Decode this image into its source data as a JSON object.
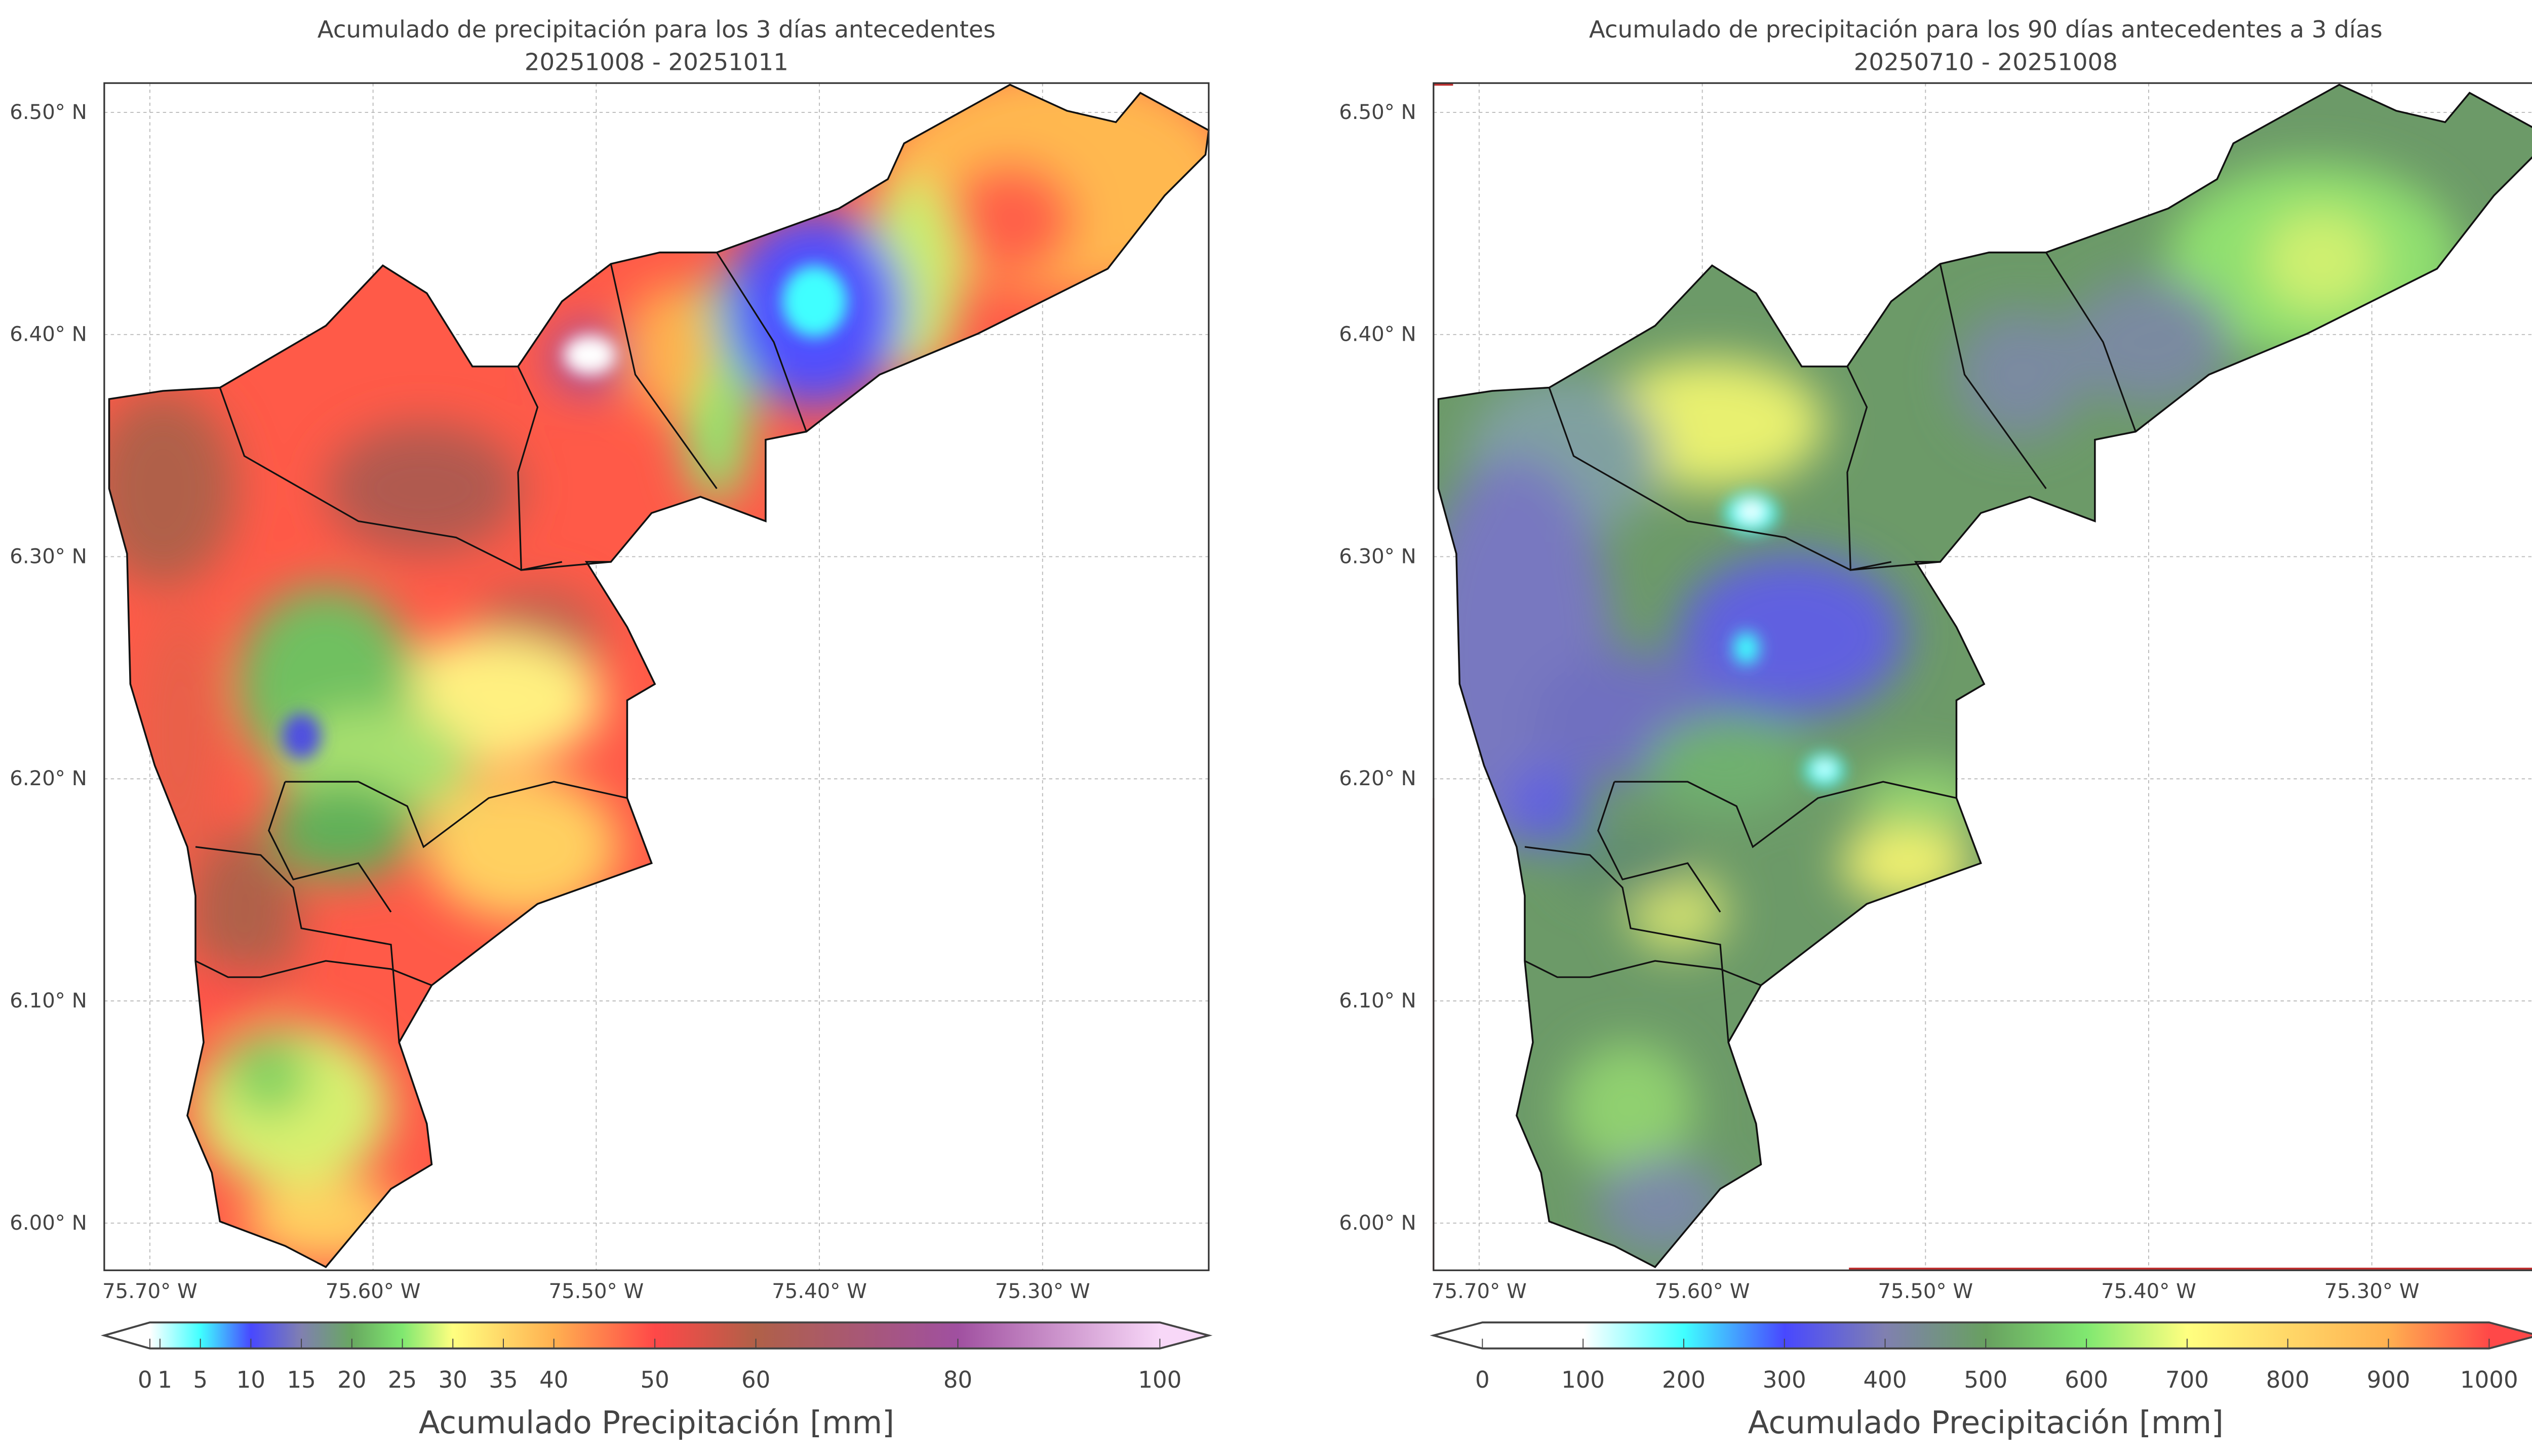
{
  "panels": [
    {
      "title": "Acumulado de precipitación para los 3 días antecedentes",
      "subtitle": "20251008 - 20251011",
      "colorbar": {
        "label": "Acumulado Precipitación [mm]",
        "min": 0,
        "max": 100,
        "ticks": [
          0,
          1,
          5,
          10,
          15,
          20,
          25,
          30,
          35,
          40,
          50,
          60,
          80,
          100
        ],
        "tick_labels": [
          "0",
          "1",
          "5",
          "10",
          "15",
          "20",
          "25",
          "30",
          "35",
          "40",
          "50",
          "60",
          "80",
          "100"
        ],
        "colors": [
          [
            0,
            "#ffffff"
          ],
          [
            5,
            "#40ffff"
          ],
          [
            10,
            "#4848ff"
          ],
          [
            15,
            "#8080b0"
          ],
          [
            20,
            "#68a860"
          ],
          [
            25,
            "#80e870"
          ],
          [
            30,
            "#ffff80"
          ],
          [
            40,
            "#ffb050"
          ],
          [
            50,
            "#ff4848"
          ],
          [
            60,
            "#b06048"
          ],
          [
            80,
            "#a050a0"
          ],
          [
            100,
            "#f8d8f8"
          ]
        ],
        "extend": "both"
      }
    },
    {
      "title": "Acumulado de precipitación para los 90 días antecedentes a 3 días",
      "subtitle": "20250710 - 20251008",
      "colorbar": {
        "label": "Acumulado Precipitación [mm]",
        "min": 0,
        "max": 1000,
        "ticks": [
          0,
          100,
          200,
          300,
          400,
          500,
          600,
          700,
          800,
          900,
          1000
        ],
        "tick_labels": [
          "0",
          "100",
          "200",
          "300",
          "400",
          "500",
          "600",
          "700",
          "800",
          "900",
          "1000"
        ],
        "colors": [
          [
            0,
            "#ffffff"
          ],
          [
            100,
            "#ffffff"
          ],
          [
            200,
            "#40ffff"
          ],
          [
            300,
            "#4848ff"
          ],
          [
            400,
            "#8080b0"
          ],
          [
            500,
            "#68a060"
          ],
          [
            600,
            "#80e870"
          ],
          [
            700,
            "#ffff80"
          ],
          [
            900,
            "#ffb050"
          ],
          [
            1000,
            "#ff4848"
          ]
        ],
        "extend": "both"
      }
    }
  ],
  "axes": {
    "lat_labels": [
      "6.50° N",
      "6.40° N",
      "6.30° N",
      "6.20° N",
      "6.10° N",
      "6.00° N"
    ],
    "lon_labels": [
      "75.70° W",
      "75.60° W",
      "75.50° W",
      "75.40° W",
      "75.30° W"
    ]
  }
}
